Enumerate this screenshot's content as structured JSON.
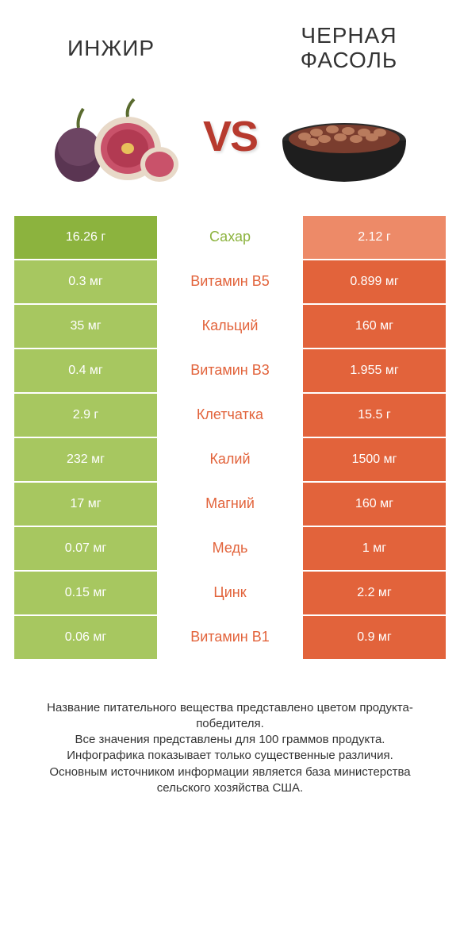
{
  "header": {
    "left_title": "ИНЖИР",
    "right_title": "ЧЕРНАЯ ФАСОЛЬ",
    "vs_label": "VS"
  },
  "colors": {
    "left_win": "#8cb33e",
    "left_lose": "#a7c760",
    "right_win": "#e2633b",
    "right_lose": "#ed8a68",
    "label_winner_left": "#8cb33e",
    "label_winner_right": "#e2633b",
    "vs_text": "#b73a2e"
  },
  "rows": [
    {
      "label": "Сахар",
      "left": "16.26 г",
      "right": "2.12 г",
      "winner": "left"
    },
    {
      "label": "Витамин B5",
      "left": "0.3 мг",
      "right": "0.899 мг",
      "winner": "right"
    },
    {
      "label": "Кальций",
      "left": "35 мг",
      "right": "160 мг",
      "winner": "right"
    },
    {
      "label": "Витамин B3",
      "left": "0.4 мг",
      "right": "1.955 мг",
      "winner": "right"
    },
    {
      "label": "Клетчатка",
      "left": "2.9 г",
      "right": "15.5 г",
      "winner": "right"
    },
    {
      "label": "Калий",
      "left": "232 мг",
      "right": "1500 мг",
      "winner": "right"
    },
    {
      "label": "Магний",
      "left": "17 мг",
      "right": "160 мг",
      "winner": "right"
    },
    {
      "label": "Медь",
      "left": "0.07 мг",
      "right": "1 мг",
      "winner": "right"
    },
    {
      "label": "Цинк",
      "left": "0.15 мг",
      "right": "2.2 мг",
      "winner": "right"
    },
    {
      "label": "Витамин B1",
      "left": "0.06 мг",
      "right": "0.9 мг",
      "winner": "right"
    }
  ],
  "footer": {
    "line1": "Название питательного вещества представлено цветом продукта-победителя.",
    "line2": "Все значения представлены для 100 граммов продукта.",
    "line3": "Инфографика показывает только существенные различия.",
    "line4": "Основным источником информации является база министерства сельского хозяйства США."
  }
}
